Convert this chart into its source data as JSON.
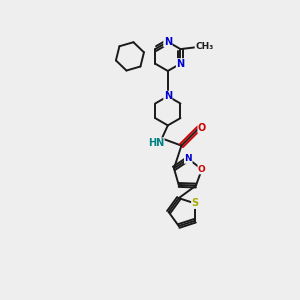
{
  "background_color": "#eeeeee",
  "bond_color": "#1a1a1a",
  "atom_colors": {
    "N": "#0000cc",
    "O": "#cc0000",
    "S": "#aaaa00",
    "H": "#008080",
    "C": "#1a1a1a"
  },
  "figsize": [
    3.0,
    3.0
  ],
  "dpi": 100,
  "xlim": [
    0,
    10
  ],
  "ylim": [
    0,
    10
  ]
}
